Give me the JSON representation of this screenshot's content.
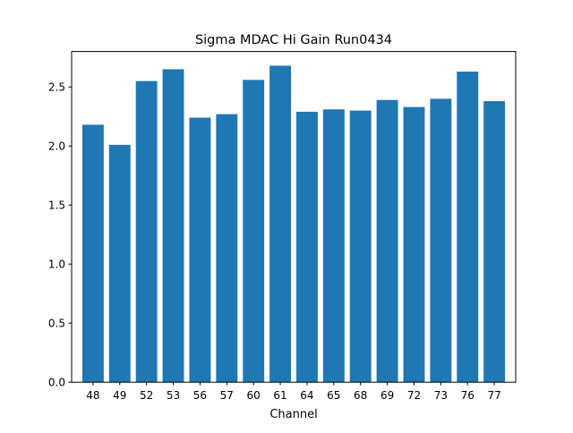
{
  "chart_data": {
    "type": "bar",
    "title": "Sigma MDAC Hi Gain Run0434",
    "xlabel": "Channel",
    "ylabel": "",
    "categories": [
      "48",
      "49",
      "52",
      "53",
      "56",
      "57",
      "60",
      "61",
      "64",
      "65",
      "68",
      "69",
      "72",
      "73",
      "76",
      "77"
    ],
    "values": [
      2.18,
      2.01,
      2.55,
      2.65,
      2.24,
      2.27,
      2.56,
      2.68,
      2.29,
      2.31,
      2.3,
      2.39,
      2.33,
      2.4,
      2.63,
      2.38
    ],
    "ylim": [
      0,
      2.8
    ],
    "yticks": [
      "0.0",
      "0.5",
      "1.0",
      "1.5",
      "2.0",
      "2.5"
    ],
    "grid": false,
    "colors": {
      "bar": "#1f77b4",
      "axis": "#000000"
    }
  }
}
